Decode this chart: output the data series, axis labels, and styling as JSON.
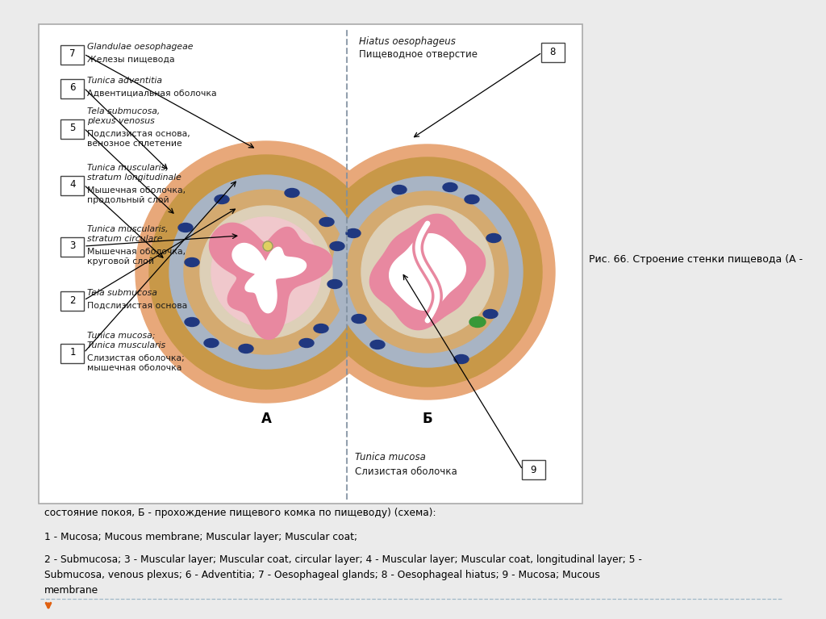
{
  "bg_color": "#ebebeb",
  "title_caption": "Рис. 66. Строение стенки пищевода (А -",
  "subtitle": "состояние покоя, Б - прохождение пищевого комка по пищеводу) (схема):",
  "line1": "1 - Mucosa; Mucous membrane; Muscular layer; Muscular coat;",
  "line2": "2 - Submucosa; 3 - Muscular layer; Muscular coat, circular layer; 4 - Muscular layer; Muscular coat, longitudinal layer; 5 -\nSubmucosa, venous plexus; 6 - Adventitia; 7 - Oesophageal glands; 8 - Oesophageal hiatus; 9 - Mucosa; Mucous\nmembrane",
  "colors": {
    "outer_ring": "#e8a87a",
    "blue_outline": "#5878a0",
    "gray_layer": "#a8b4c4",
    "brown_longitudinal": "#c89848",
    "light_brown": "#d4aa70",
    "pink_mucosa": "#e888a0",
    "white_lumen": "#f8f8f0",
    "inner_submucosa": "#ddd0b8",
    "dark_blue_oval": "#203880",
    "green_dot": "#389838",
    "dashed_line": "#8090a0",
    "text_color": "#1a1a1a"
  }
}
